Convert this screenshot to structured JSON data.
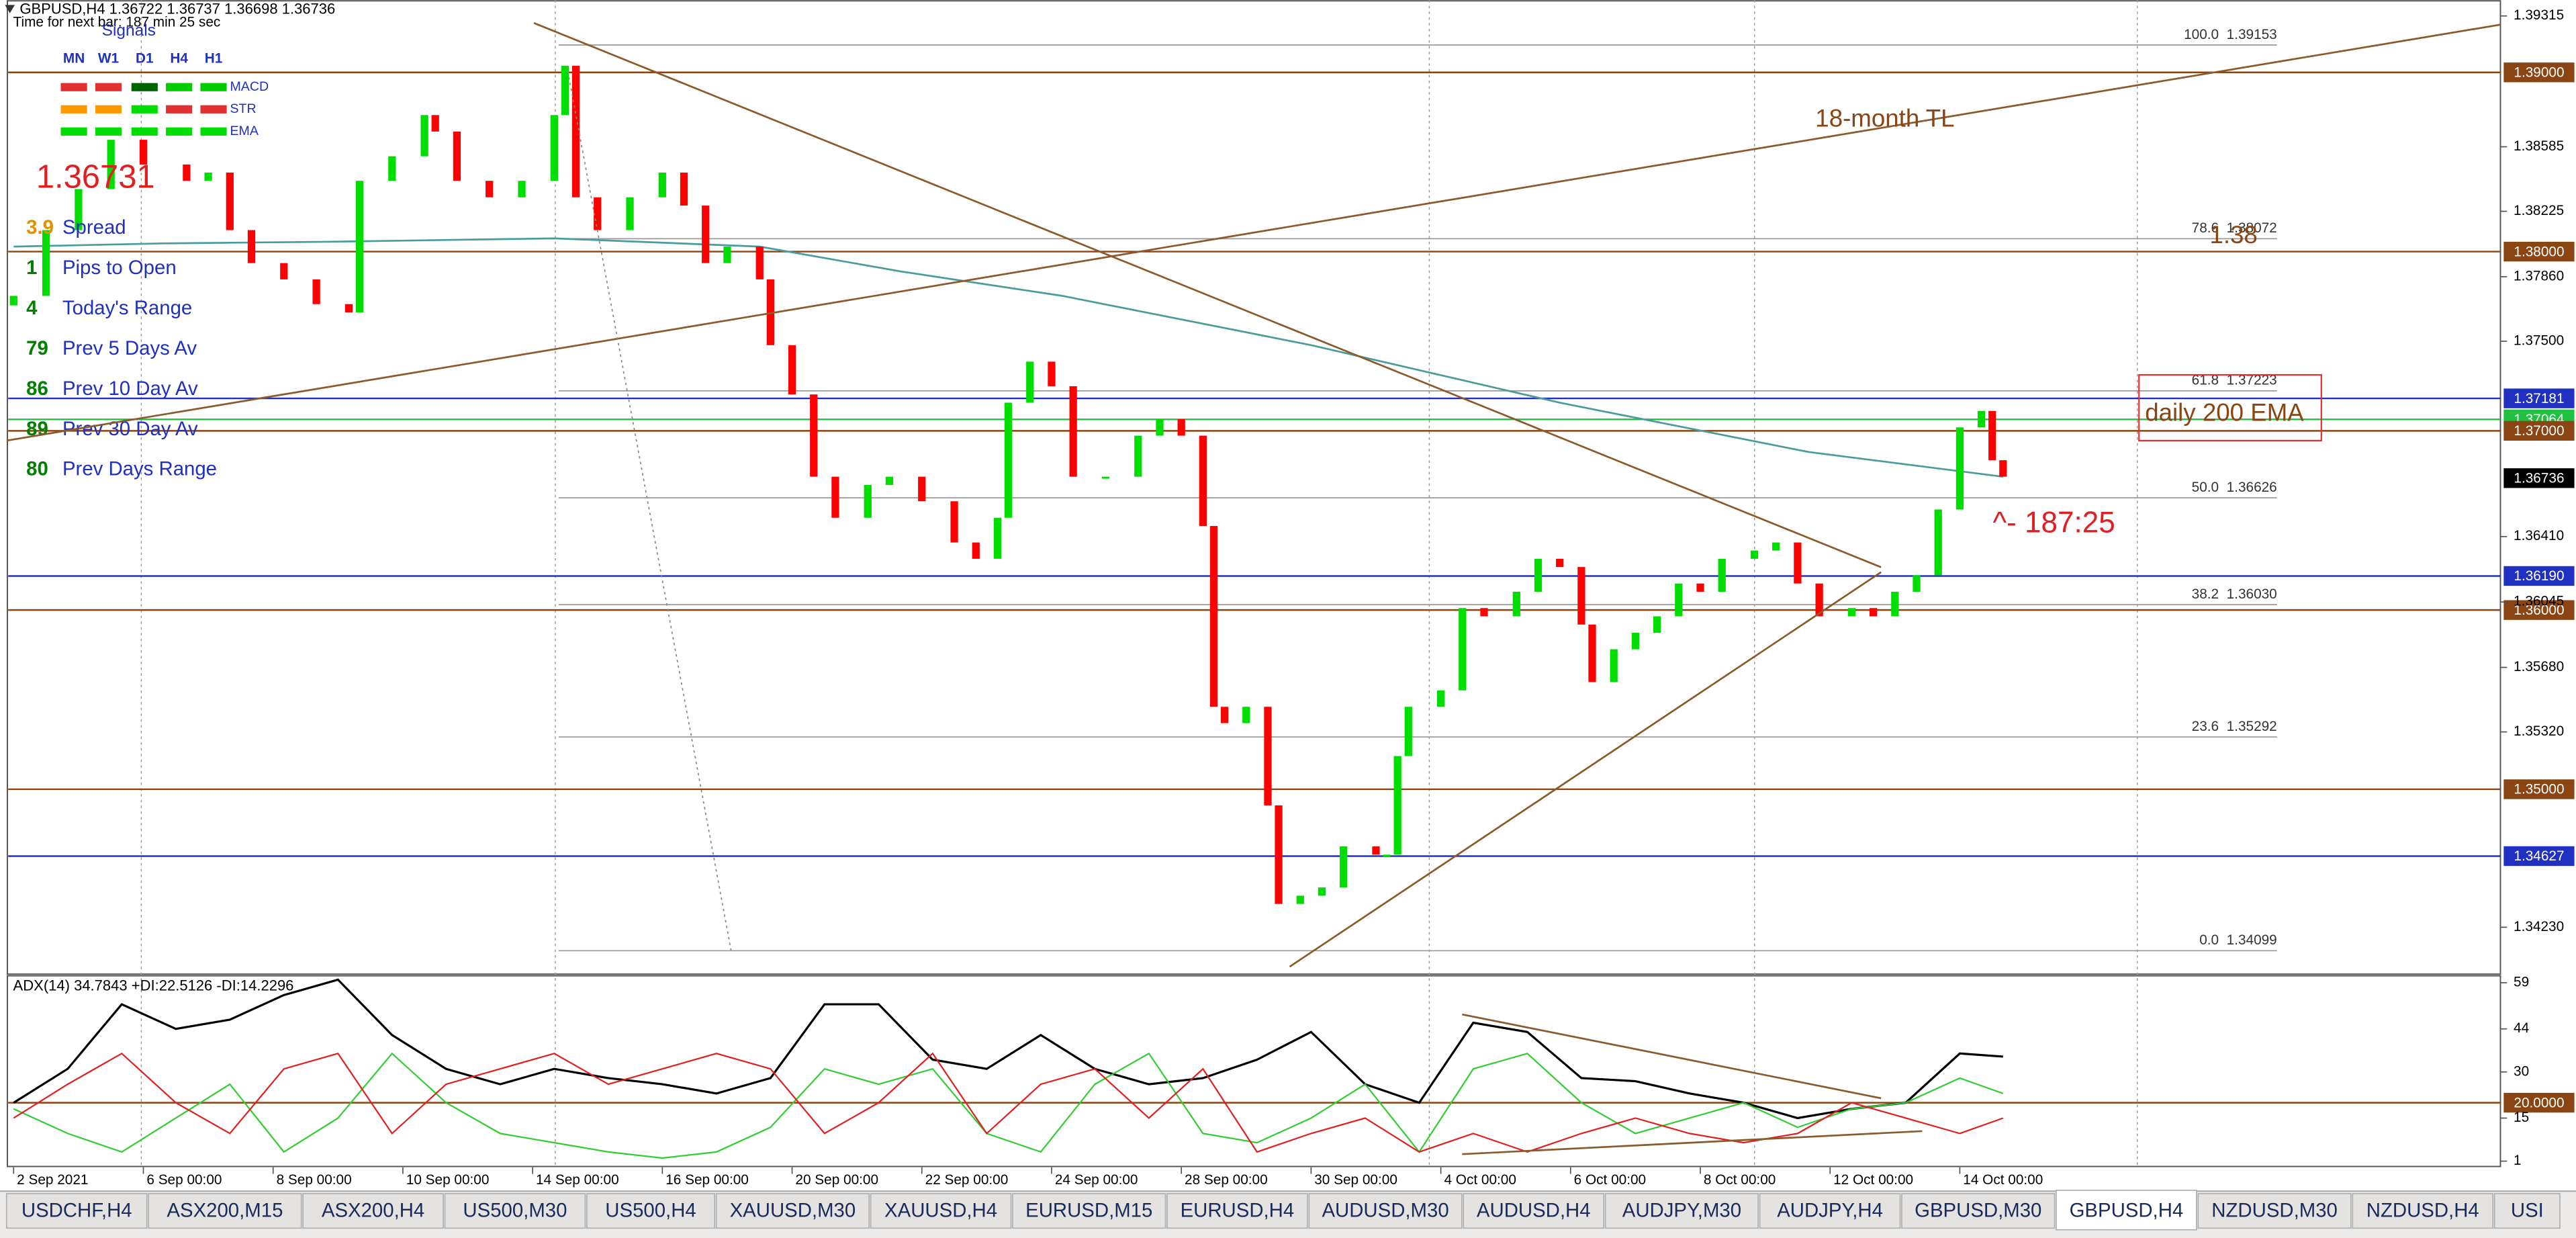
{
  "chart_data": [
    {
      "type": "candlestick",
      "title": "GBPUSD,H4 1.36722 1.36737 1.36698 1.36736",
      "subtitle": "Time for next bar: 187 min 25 sec",
      "x": [
        0,
        3,
        6,
        9,
        12,
        16,
        18,
        20,
        22,
        25,
        28,
        31,
        32,
        35,
        38,
        39,
        41,
        44,
        47,
        50,
        51,
        52,
        54,
        57,
        60,
        62,
        64,
        66,
        69,
        70,
        72,
        74,
        76,
        79,
        81,
        84,
        87,
        89,
        91,
        92,
        94,
        96,
        98,
        101,
        104,
        106,
        108,
        110,
        111,
        112,
        114,
        116,
        117,
        119,
        121,
        123,
        126,
        127,
        128,
        129,
        132,
        134,
        136,
        139,
        141,
        143,
        145,
        146,
        148,
        150,
        152,
        154,
        156,
        158,
        161,
        163,
        165,
        167,
        170,
        172,
        174,
        176,
        178,
        180,
        182,
        183,
        184
      ],
      "open": [
        1.377,
        1.37753,
        1.3812,
        1.38349,
        1.38624,
        1.38486,
        1.38395,
        1.38441,
        1.3812,
        1.37936,
        1.37845,
        1.37707,
        1.37661,
        1.38395,
        1.38532,
        1.38762,
        1.3867,
        1.38395,
        1.38303,
        1.38395,
        1.38762,
        1.39037,
        1.38303,
        1.3812,
        1.38303,
        1.38441,
        1.38257,
        1.37936,
        1.38028,
        1.37845,
        1.37478,
        1.37203,
        1.36744,
        1.36515,
        1.36698,
        1.36744,
        1.36607,
        1.36377,
        1.36286,
        1.36515,
        1.37157,
        1.37386,
        1.37249,
        1.36744,
        1.36744,
        1.36973,
        1.37065,
        1.36973,
        1.36469,
        1.3546,
        1.35369,
        1.3546,
        1.3491,
        1.3436,
        1.34406,
        1.34452,
        1.34681,
        1.34635,
        1.34635,
        1.35185,
        1.3546,
        1.35552,
        1.36011,
        1.35965,
        1.36102,
        1.36286,
        1.3624,
        1.35919,
        1.35598,
        1.35781,
        1.35873,
        1.35965,
        1.36148,
        1.36102,
        1.36286,
        1.36332,
        1.36377,
        1.36148,
        1.35965,
        1.36011,
        1.35965,
        1.36102,
        1.36194,
        1.36561,
        1.37019,
        1.37111,
        1.36836
      ],
      "close": [
        1.37753,
        1.3812,
        1.38349,
        1.38624,
        1.38486,
        1.38395,
        1.38441,
        1.3812,
        1.37936,
        1.37845,
        1.37707,
        1.37661,
        1.38395,
        1.38532,
        1.38762,
        1.3867,
        1.38395,
        1.38303,
        1.38395,
        1.38762,
        1.39037,
        1.38303,
        1.3812,
        1.38303,
        1.38441,
        1.38257,
        1.37936,
        1.38028,
        1.37845,
        1.37478,
        1.37203,
        1.36744,
        1.36515,
        1.36698,
        1.36744,
        1.36607,
        1.36377,
        1.36286,
        1.36515,
        1.37157,
        1.37386,
        1.37249,
        1.36744,
        1.36744,
        1.36973,
        1.37065,
        1.36973,
        1.36469,
        1.3546,
        1.35369,
        1.3546,
        1.3491,
        1.3436,
        1.34406,
        1.34452,
        1.34681,
        1.34635,
        1.34635,
        1.35185,
        1.3546,
        1.35552,
        1.36011,
        1.35965,
        1.36102,
        1.36286,
        1.3624,
        1.35919,
        1.35598,
        1.35781,
        1.35873,
        1.35965,
        1.36148,
        1.36102,
        1.36286,
        1.36332,
        1.36377,
        1.36148,
        1.35965,
        1.36011,
        1.35965,
        1.36102,
        1.36194,
        1.36561,
        1.37019,
        1.37111,
        1.36836,
        1.36744
      ],
      "up_color": "#00dd00",
      "down_color": "#ff0000",
      "xlim": [
        -0.5,
        230
      ],
      "ylim": [
        1.33973,
        1.39404
      ],
      "xticks": [
        {
          "value": 0,
          "label": "2 Sep 2021"
        },
        {
          "value": 12,
          "label": "6 Sep 00:00"
        },
        {
          "value": 24,
          "label": "8 Sep 00:00"
        },
        {
          "value": 36,
          "label": "10 Sep 00:00"
        },
        {
          "value": 48,
          "label": "14 Sep 00:00"
        },
        {
          "value": 60,
          "label": "16 Sep 00:00"
        },
        {
          "value": 72,
          "label": "20 Sep 00:00"
        },
        {
          "value": 84,
          "label": "22 Sep 00:00"
        },
        {
          "value": 96,
          "label": "24 Sep 00:00"
        },
        {
          "value": 108,
          "label": "28 Sep 00:00"
        },
        {
          "value": 120,
          "label": "30 Sep 00:00"
        },
        {
          "value": 132,
          "label": "4 Oct 00:00"
        },
        {
          "value": 144,
          "label": "6 Oct 00:00"
        },
        {
          "value": 156,
          "label": "8 Oct 00:00"
        },
        {
          "value": 168,
          "label": "12 Oct 00:00"
        },
        {
          "value": 180,
          "label": "14 Oct 00:00"
        }
      ],
      "yticks": [
        1.39315,
        1.38585,
        1.38225,
        {
          "value": 1.3786,
          "label": "1.37860"
        },
        {
          "value": 1.375,
          "label": "1.37500"
        },
        {
          "value": 1.3641,
          "label": "1.36410"
        },
        1.36045,
        {
          "value": 1.3568,
          "label": "1.35680"
        },
        {
          "value": 1.3532,
          "label": "1.35320"
        },
        {
          "value": 1.3423,
          "label": "1.34230"
        }
      ],
      "levels": [
        {
          "value": 1.39,
          "label": "1.39000",
          "color": "#8b4513"
        },
        {
          "value": 1.38,
          "label": "1.38000",
          "color": "#8b4513"
        },
        {
          "value": 1.37181,
          "label": "1.37181",
          "color": "#2030c0"
        },
        {
          "value": 1.37064,
          "label": "1.37064",
          "color": "#20c040"
        },
        {
          "value": 1.37,
          "label": "1.37000",
          "color": "#8b4513"
        },
        {
          "value": 1.3619,
          "label": "1.36190",
          "color": "#2030c0"
        },
        {
          "value": 1.36,
          "label": "1.36000",
          "color": "#8b4513"
        },
        {
          "value": 1.35,
          "label": "1.35000",
          "color": "#8b4513"
        },
        {
          "value": 1.34627,
          "label": "1.34627",
          "color": "#2030c0"
        }
      ],
      "bid": {
        "value": 1.36736,
        "label": "1.36736"
      },
      "fibonacci": [
        {
          "value": 1.39153,
          "label": "100.0  1.39153"
        },
        {
          "value": 1.38072,
          "label": "78.6  1.38072"
        },
        {
          "value": 1.37223,
          "label": "61.8  1.37223"
        },
        {
          "value": 1.36626,
          "label": "50.0  1.36626"
        },
        {
          "value": 1.3603,
          "label": "38.2  1.36030"
        },
        {
          "value": 1.35292,
          "label": "23.6  1.35292"
        },
        {
          "value": 1.34099,
          "label": "0.0  1.34099"
        }
      ],
      "ma": {
        "color": "#4a9c9c",
        "x": [
          0,
          14,
          29,
          50,
          69,
          82,
          97,
          120,
          143,
          166,
          184
        ],
        "values": [
          1.38028,
          1.38046,
          1.38055,
          1.38074,
          1.38028,
          1.3789,
          1.37753,
          1.37478,
          1.37157,
          1.36882,
          1.36744
        ]
      },
      "annotations": {
        "trendline": "18-month TL",
        "round_level": "1.38",
        "ema_box": "daily 200 EMA",
        "countdown": "^- 187:25"
      }
    },
    {
      "type": "line",
      "title": "ADX(14) 34.7843 +DI:22.5126 -DI:14.2296",
      "x": [
        0,
        5,
        10,
        15,
        20,
        25,
        30,
        35,
        40,
        45,
        50,
        55,
        60,
        65,
        70,
        75,
        80,
        85,
        90,
        95,
        100,
        105,
        110,
        115,
        120,
        125,
        130,
        135,
        140,
        145,
        150,
        155,
        160,
        165,
        170,
        175,
        180,
        184
      ],
      "series": [
        {
          "color": "#000000",
          "values": [
            20,
            31,
            52,
            44,
            47,
            55,
            60,
            42,
            31,
            26,
            31,
            28,
            26,
            23,
            28,
            52,
            52,
            34,
            31,
            42,
            31,
            26,
            28,
            34,
            43,
            26,
            20,
            46,
            43,
            28,
            27,
            23,
            20,
            15,
            18,
            20,
            36,
            35
          ]
        },
        {
          "color": "#33cc33",
          "values": [
            18,
            10,
            4,
            15,
            26,
            4,
            15,
            36,
            20,
            10,
            7,
            4,
            2,
            4,
            12,
            31,
            26,
            31,
            10,
            4,
            26,
            36,
            10,
            7,
            15,
            26,
            4,
            31,
            36,
            20,
            10,
            15,
            20,
            12,
            18,
            20,
            28,
            23
          ]
        },
        {
          "color": "#e02020",
          "values": [
            15,
            26,
            36,
            20,
            10,
            31,
            36,
            10,
            26,
            31,
            36,
            26,
            31,
            36,
            31,
            10,
            20,
            36,
            10,
            26,
            31,
            15,
            31,
            4,
            10,
            15,
            4,
            10,
            4,
            10,
            15,
            10,
            7,
            10,
            20,
            15,
            10,
            15
          ]
        }
      ],
      "ylim": [
        -1,
        61
      ],
      "yticks": [
        59,
        44,
        30,
        15,
        1
      ],
      "level": {
        "value": 20,
        "label": "20.0000",
        "color": "#8b4513"
      }
    }
  ],
  "panel": {
    "signals_title": "Signals",
    "timeframes": [
      "MN",
      "W1",
      "D1",
      "H4",
      "H1"
    ],
    "indicators": [
      {
        "name": "MACD",
        "colors": [
          "#e03030",
          "#e03030",
          "#006400",
          "#00cc00",
          "#00cc00"
        ]
      },
      {
        "name": "STR",
        "colors": [
          "#ff9900",
          "#ff9900",
          "#00dd00",
          "#e03030",
          "#e03030"
        ]
      },
      {
        "name": "EMA",
        "colors": [
          "#00dd00",
          "#00dd00",
          "#00dd00",
          "#00dd00",
          "#00dd00"
        ]
      }
    ],
    "price": "1.36731",
    "stats": [
      {
        "value": 3.9,
        "label": "Spread",
        "color": "#e09000"
      },
      {
        "value": 1,
        "label": "Pips to Open",
        "color": "#008000"
      },
      {
        "value": 4,
        "label": "Today's Range",
        "color": "#008000"
      },
      {
        "value": 79,
        "label": "Prev 5 Days Av",
        "color": "#008000"
      },
      {
        "value": 86,
        "label": "Prev 10 Day Av",
        "color": "#008000"
      },
      {
        "value": 89,
        "label": "Prev 30 Day Av",
        "color": "#008000"
      },
      {
        "value": 80,
        "label": "Prev Days Range",
        "color": "#008000"
      }
    ]
  },
  "tabs": {
    "items": [
      "USDCHF,H4",
      "ASX200,M15",
      "ASX200,H4",
      "US500,M30",
      "US500,H4",
      "XAUUSD,M30",
      "XAUUSD,H4",
      "EURUSD,M15",
      "EURUSD,H4",
      "AUDUSD,M30",
      "AUDUSD,H4",
      "AUDJPY,M30",
      "AUDJPY,H4",
      "GBPUSD,M30",
      "GBPUSD,H4",
      "NZDUSD,M30",
      "NZDUSD,H4",
      "USI"
    ],
    "active": 14
  }
}
